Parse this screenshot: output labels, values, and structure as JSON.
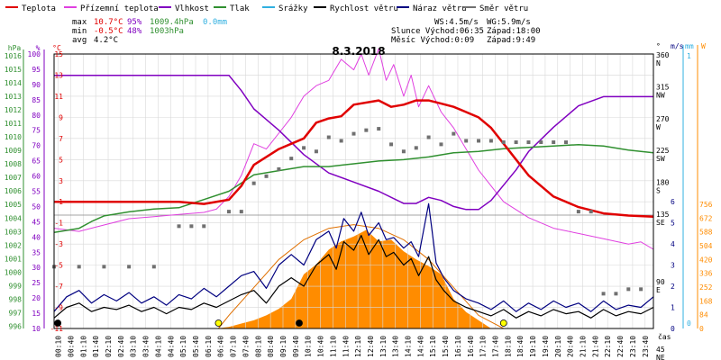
{
  "chart_data": {
    "type": "line",
    "title": "8.3.2018",
    "legend": [
      {
        "label": "Teplota",
        "color": "#e00000"
      },
      {
        "label": "Přízemní teplota",
        "color": "#e040e0"
      },
      {
        "label": "Vlhkost",
        "color": "#8000c0"
      },
      {
        "label": "Tlak",
        "color": "#309030"
      },
      {
        "label": "Srážky",
        "color": "#30b0e0"
      },
      {
        "label": "Rychlost větru",
        "color": "#000000"
      },
      {
        "label": "Náraz větru",
        "color": "#000080"
      },
      {
        "label": "Směr větru",
        "color": "#707070"
      }
    ],
    "stats": {
      "row1": {
        "label": "max",
        "temp": "10.7°C",
        "hum": "95%",
        "press": "1009.4hPa",
        "rain": "0.0mm"
      },
      "row2": {
        "label": "min",
        "temp": "-0.5°C",
        "hum": "48%",
        "press": "1003hPa"
      },
      "row3": {
        "label": "avg",
        "temp": "4.2°C"
      }
    },
    "info": {
      "line1a": "WS:4.5m/s",
      "line1b": "WG:5.9m/s",
      "line2a": "Slunce Východ:06:35",
      "line2b": "Západ:18:00",
      "line3a": "Měsíc  Východ:0:09",
      "line3b": "Západ:9:49"
    },
    "axes": {
      "pressure": {
        "unit": "hPa",
        "ticks": [
          "1016",
          "1015",
          "1014",
          "1013",
          "1012",
          "1011",
          "1010",
          "1009",
          "1008",
          "1007",
          "1006",
          "1005",
          "1004",
          "1003",
          "1002",
          "1001",
          "1000",
          "999",
          "998",
          "997",
          "996"
        ]
      },
      "humidity": {
        "unit": "%",
        "ticks": [
          "100",
          "95",
          "90",
          "85",
          "80",
          "75",
          "70",
          "65",
          "60",
          "55",
          "50",
          "45",
          "40",
          "35",
          "30",
          "25",
          "20",
          "15",
          "10"
        ]
      },
      "temperature": {
        "unit": "°C",
        "ticks": [
          "15",
          "13",
          "11",
          "9",
          "7",
          "5",
          "3",
          "1",
          "-1",
          "-3",
          "-5",
          "-7",
          "-9",
          "-11"
        ]
      },
      "direction": {
        "unit": "°",
        "ticks": [
          {
            "v": "360",
            "d": "N"
          },
          {
            "v": "315",
            "d": "NW"
          },
          {
            "v": "270",
            "d": "W"
          },
          {
            "v": "225",
            "d": "SW"
          },
          {
            "v": "180",
            "d": "S"
          },
          {
            "v": "135",
            "d": "SE"
          },
          {
            "v": "90",
            "d": "E"
          },
          {
            "v": "45",
            "d": "NE"
          }
        ]
      },
      "wind": {
        "unit": "m/s",
        "ticks": [
          "6",
          "5",
          "4",
          "3",
          "2",
          "1",
          "0"
        ]
      },
      "rain": {
        "unit": "mm",
        "ticks": [
          "1",
          "0"
        ]
      },
      "solar": {
        "unit": "W",
        "ticks": [
          "756",
          "672",
          "588",
          "504",
          "420",
          "336",
          "252",
          "168",
          "84",
          "0"
        ]
      },
      "time": {
        "label": "čas",
        "ticks": [
          "00:10",
          "00:40",
          "01:10",
          "01:40",
          "02:10",
          "02:40",
          "03:10",
          "03:40",
          "04:10",
          "04:40",
          "05:10",
          "05:40",
          "06:10",
          "06:40",
          "07:10",
          "07:40",
          "08:10",
          "08:40",
          "09:10",
          "09:40",
          "10:10",
          "10:40",
          "11:10",
          "11:40",
          "12:10",
          "12:40",
          "13:10",
          "13:40",
          "14:10",
          "14:40",
          "15:10",
          "15:40",
          "16:10",
          "16:40",
          "17:10",
          "17:40",
          "18:10",
          "18:40",
          "19:10",
          "19:40",
          "20:10",
          "20:40",
          "21:10",
          "21:40",
          "22:10",
          "22:40",
          "23:10",
          "23:40"
        ]
      }
    },
    "series": {
      "teplota": {
        "x": [
          0,
          2,
          4,
          5,
          6,
          7,
          7.5,
          8,
          9,
          10,
          10.5,
          11,
          11.5,
          12,
          13,
          13.5,
          14,
          14.5,
          15,
          15.5,
          16,
          16.5,
          17,
          17.5,
          18,
          18.5,
          19,
          20,
          21,
          22,
          23,
          24
        ],
        "y": [
          1.0,
          1.0,
          1.0,
          1.0,
          0.8,
          1.2,
          2.5,
          4.5,
          6.0,
          7.0,
          8.5,
          8.9,
          9.1,
          10.2,
          10.6,
          10.0,
          10.2,
          10.6,
          10.6,
          10.3,
          10.0,
          9.5,
          9.0,
          8.0,
          6.5,
          5.0,
          3.5,
          1.5,
          0.5,
          -0.1,
          -0.3,
          -0.4
        ]
      },
      "prizemni": {
        "x": [
          0,
          1,
          2,
          3,
          4,
          5,
          6,
          6.5,
          7,
          7.5,
          8,
          8.5,
          9,
          9.5,
          10,
          10.5,
          11,
          11.5,
          12,
          12.3,
          12.6,
          13,
          13.3,
          13.6,
          14,
          14.3,
          14.6,
          15,
          15.5,
          16,
          16.5,
          17,
          17.5,
          18,
          19,
          20,
          21,
          22,
          23,
          23.5,
          24
        ],
        "y": [
          -1.5,
          -1.8,
          -1.2,
          -0.6,
          -0.4,
          -0.2,
          0,
          0.3,
          1.5,
          3.5,
          6.5,
          6.0,
          7.5,
          9.0,
          11.0,
          12.0,
          12.5,
          14.5,
          13.5,
          15.0,
          13.0,
          15.5,
          12.5,
          14.0,
          11.0,
          13.0,
          10.0,
          12.0,
          9.5,
          8.0,
          6.0,
          4.0,
          2.5,
          1.0,
          -0.5,
          -1.5,
          -2.0,
          -2.5,
          -3.0,
          -2.8,
          -3.5
        ]
      },
      "vlhkost": {
        "x": [
          0,
          2,
          4,
          6,
          7,
          7.5,
          8,
          9,
          10,
          11,
          12,
          13,
          14,
          14.5,
          15,
          15.5,
          16,
          16.5,
          17,
          17.5,
          18,
          18.5,
          19,
          20,
          21,
          22,
          23,
          24
        ],
        "y": [
          93,
          93,
          93,
          93,
          93,
          88,
          82,
          75,
          67,
          61,
          58,
          55,
          51,
          51,
          53,
          52,
          50,
          49,
          49,
          52,
          57,
          62,
          68,
          76,
          83,
          86,
          86,
          86
        ]
      },
      "tlak": {
        "x": [
          0,
          1,
          1.5,
          2,
          3,
          4,
          5,
          6,
          7,
          8,
          9,
          10,
          11,
          12,
          13,
          14,
          15,
          16,
          17,
          18,
          19,
          20,
          21,
          22,
          23,
          24
        ],
        "y": [
          1003.0,
          1003.3,
          1003.8,
          1004.2,
          1004.5,
          1004.7,
          1004.8,
          1005.4,
          1006.0,
          1007.2,
          1007.5,
          1007.8,
          1007.8,
          1008.0,
          1008.2,
          1008.3,
          1008.5,
          1008.8,
          1008.9,
          1009.1,
          1009.2,
          1009.3,
          1009.4,
          1009.3,
          1009.0,
          1008.8
        ]
      },
      "rychlost": {
        "x": [
          0,
          0.5,
          1,
          1.5,
          2,
          2.5,
          3,
          3.5,
          4,
          4.5,
          5,
          5.5,
          6,
          6.5,
          7,
          7.5,
          8,
          8.5,
          9,
          9.5,
          10,
          10.5,
          11,
          11.3,
          11.6,
          12,
          12.3,
          12.6,
          13,
          13.3,
          13.6,
          14,
          14.3,
          14.6,
          15,
          15.3,
          15.6,
          16,
          16.5,
          17,
          17.5,
          18,
          18.5,
          19,
          19.5,
          20,
          20.5,
          21,
          21.5,
          22,
          22.5,
          23,
          23.5,
          24
        ],
        "y": [
          0.5,
          1.0,
          1.2,
          0.8,
          1.0,
          0.9,
          1.1,
          0.8,
          1.0,
          0.7,
          1.0,
          0.9,
          1.2,
          1.0,
          1.3,
          1.6,
          1.8,
          1.2,
          2.0,
          2.4,
          2.0,
          3.0,
          3.5,
          2.8,
          4.1,
          3.7,
          4.4,
          3.5,
          4.2,
          3.4,
          3.6,
          3.0,
          3.3,
          2.5,
          3.4,
          2.3,
          1.8,
          1.3,
          1.0,
          0.8,
          0.6,
          0.9,
          0.5,
          0.8,
          0.6,
          0.9,
          0.7,
          0.8,
          0.5,
          0.9,
          0.6,
          0.8,
          0.7,
          1.0
        ]
      },
      "naraz": {
        "x": [
          0,
          0.5,
          1,
          1.5,
          2,
          2.5,
          3,
          3.5,
          4,
          4.5,
          5,
          5.5,
          6,
          6.5,
          7,
          7.5,
          8,
          8.5,
          9,
          9.5,
          10,
          10.5,
          11,
          11.3,
          11.6,
          12,
          12.3,
          12.6,
          13,
          13.3,
          13.6,
          14,
          14.3,
          14.6,
          15,
          15.3,
          15.6,
          16,
          16.5,
          17,
          17.5,
          18,
          18.5,
          19,
          19.5,
          20,
          20.5,
          21,
          21.5,
          22,
          22.5,
          23,
          23.5,
          24
        ],
        "y": [
          0.8,
          1.5,
          1.8,
          1.2,
          1.6,
          1.3,
          1.7,
          1.2,
          1.5,
          1.1,
          1.6,
          1.4,
          1.9,
          1.5,
          2.0,
          2.5,
          2.7,
          1.9,
          3.0,
          3.5,
          3.0,
          4.2,
          4.6,
          3.8,
          5.2,
          4.6,
          5.5,
          4.4,
          5.0,
          4.2,
          4.3,
          3.8,
          4.1,
          3.4,
          5.9,
          3.1,
          2.4,
          1.8,
          1.4,
          1.2,
          0.9,
          1.3,
          0.8,
          1.2,
          0.9,
          1.3,
          1.0,
          1.2,
          0.8,
          1.3,
          0.9,
          1.1,
          1.0,
          1.5
        ]
      },
      "smer": {
        "x": [
          0,
          1,
          2,
          3,
          4,
          5,
          5.5,
          6,
          7,
          7.5,
          8,
          8.5,
          9,
          9.5,
          10,
          10.5,
          11,
          11.5,
          12,
          12.5,
          13,
          13.5,
          14,
          14.5,
          15,
          15.5,
          16,
          16.5,
          17,
          17.5,
          18,
          18.5,
          19,
          19.5,
          20,
          20.5,
          21,
          21.5,
          22,
          22.5,
          23,
          23.5
        ],
        "y": [
          103,
          103,
          103,
          103,
          103,
          130,
          130,
          130,
          145,
          145,
          185,
          195,
          205,
          220,
          235,
          230,
          250,
          245,
          255,
          260,
          262,
          240,
          230,
          235,
          250,
          240,
          255,
          245,
          245,
          245,
          243,
          243,
          243,
          243,
          243,
          243,
          145,
          145,
          85,
          85,
          88,
          88
        ]
      },
      "solar": {
        "x": [
          0,
          6.5,
          7,
          7.5,
          8,
          8.5,
          9,
          9.5,
          10,
          10.5,
          11,
          11.5,
          12,
          12.5,
          13,
          13.5,
          14,
          14.5,
          15,
          15.5,
          16,
          16.5,
          17,
          17.5,
          24
        ],
        "y": [
          0,
          0,
          10,
          30,
          50,
          80,
          120,
          180,
          330,
          390,
          480,
          530,
          560,
          600,
          530,
          540,
          470,
          420,
          380,
          330,
          180,
          100,
          50,
          0,
          0
        ]
      },
      "sun_curve": {
        "x": [
          6.58,
          7,
          8,
          9,
          10,
          11,
          12,
          13,
          14,
          15,
          16,
          17,
          18
        ],
        "y": [
          0,
          80,
          250,
          420,
          540,
          610,
          632,
          610,
          540,
          420,
          250,
          80,
          0
        ]
      }
    },
    "markers": {
      "sun": [
        "06:35",
        "18:00"
      ],
      "moon": [
        "0:09",
        "9:49"
      ]
    }
  }
}
